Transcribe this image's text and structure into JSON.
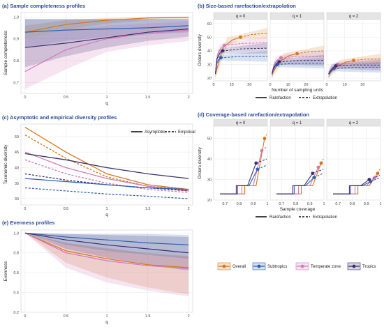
{
  "colors": {
    "overall": "#d3761c",
    "subtropics": "#2f5fb0",
    "temperate": "#d07ab8",
    "tropics": "#3b2e6e",
    "accent": "#2a4a9a"
  },
  "legend_bottom": {
    "items": [
      {
        "key": "overall",
        "label": "Overall"
      },
      {
        "key": "subtropics",
        "label": "Subtropics"
      },
      {
        "key": "temperate",
        "label": "Temperate zone"
      },
      {
        "key": "tropics",
        "label": "Tropics"
      }
    ]
  },
  "chart_data": [
    {
      "panel": "a",
      "type": "line",
      "title": "(a) Sample completeness profiles",
      "xlabel": "q",
      "ylabel": "Sample completeness",
      "xlim": [
        0,
        2
      ],
      "ylim": [
        0.65,
        1.02
      ],
      "xticks": [
        0,
        0.5,
        1,
        1.5,
        2
      ],
      "yticks": [
        0.7,
        0.8,
        0.9,
        1.0
      ],
      "x": [
        0,
        0.5,
        1,
        1.5,
        2
      ],
      "series": [
        {
          "key": "overall",
          "values": [
            0.93,
            0.965,
            0.985,
            0.995,
            0.998
          ],
          "lower": [
            0.9,
            0.94,
            0.97,
            0.985,
            0.99
          ],
          "upper": [
            0.96,
            0.985,
            0.995,
            1.0,
            1.0
          ]
        },
        {
          "key": "subtropics",
          "values": [
            0.93,
            0.94,
            0.945,
            0.95,
            0.96
          ],
          "lower": [
            0.86,
            0.89,
            0.91,
            0.92,
            0.93
          ],
          "upper": [
            0.99,
            0.99,
            0.99,
            0.99,
            0.99
          ]
        },
        {
          "key": "temperate",
          "values": [
            0.75,
            0.85,
            0.9,
            0.925,
            0.94
          ],
          "lower": [
            0.67,
            0.76,
            0.84,
            0.87,
            0.89
          ],
          "upper": [
            0.9,
            0.94,
            0.96,
            0.97,
            0.98
          ]
        },
        {
          "key": "tropics",
          "values": [
            0.86,
            0.88,
            0.905,
            0.93,
            0.945
          ],
          "lower": [
            0.77,
            0.82,
            0.86,
            0.89,
            0.91
          ],
          "upper": [
            0.99,
            0.99,
            0.99,
            0.99,
            0.99
          ]
        }
      ]
    },
    {
      "panel": "b",
      "type": "line",
      "title": "(b) Size-based rarefaction/extrapolation",
      "xlabel": "Number of sampling units",
      "ylabel": "Orders diversity",
      "facets": [
        "q = 0",
        "q = 1",
        "q = 2"
      ],
      "xlim": [
        0,
        30
      ],
      "ylim": [
        18,
        63
      ],
      "xticks": [
        0,
        10,
        20
      ],
      "yticks": [
        20,
        30,
        40,
        50,
        60
      ],
      "legend": {
        "solid": "Rarefaction",
        "dashed": "Extrapolation"
      },
      "series": [
        {
          "key": "overall",
          "ref_x": 15,
          "ref": [
            50,
            38,
            33
          ],
          "end": [
            53,
            40,
            34
          ]
        },
        {
          "key": "subtropics",
          "ref_x": 4,
          "ref": [
            35,
            30,
            27
          ],
          "end": [
            36,
            31,
            28
          ]
        },
        {
          "key": "temperate",
          "ref_x": 6,
          "ref": [
            44,
            35,
            30
          ],
          "end": [
            46,
            36,
            31
          ]
        },
        {
          "key": "tropics",
          "ref_x": 5,
          "ref": [
            40,
            32,
            29
          ],
          "end": [
            42,
            33,
            29.5
          ]
        }
      ]
    },
    {
      "panel": "c",
      "type": "line",
      "title": "(c) Asymptotic and empirical diversity profiles",
      "xlabel": "q",
      "ylabel": "Taxonomic diversity",
      "xlim": [
        0,
        2
      ],
      "ylim": [
        28,
        54
      ],
      "xticks": [
        0,
        0.5,
        1,
        1.5,
        2
      ],
      "yticks": [
        30,
        35,
        40,
        45,
        50
      ],
      "legend": {
        "solid": "Asymptotic",
        "dashed": "Empirical"
      },
      "x": [
        0,
        0.5,
        1,
        1.5,
        2
      ],
      "series": [
        {
          "key": "overall",
          "asymptotic": [
            53,
            45,
            38,
            34.5,
            33
          ],
          "empirical": [
            50.5,
            43,
            37,
            34,
            33
          ]
        },
        {
          "key": "temperate",
          "asymptotic": [
            45,
            40,
            36.5,
            34,
            32.5
          ],
          "empirical": [
            42.5,
            38,
            35,
            33,
            32
          ]
        },
        {
          "key": "tropics",
          "asymptotic": [
            44.5,
            42.5,
            40,
            38,
            36.5
          ],
          "empirical": [
            38,
            36,
            34.5,
            33.5,
            32.5
          ]
        },
        {
          "key": "subtropics",
          "asymptotic": [
            36.5,
            35.5,
            34.5,
            33.5,
            33
          ],
          "empirical": [
            33.5,
            32.5,
            31.5,
            30.8,
            30
          ]
        }
      ]
    },
    {
      "panel": "d",
      "type": "line",
      "title": "(d) Coverage-based rarefaction/extrapolation",
      "xlabel": "Sample coverage",
      "ylabel": "Orders diversity",
      "facets": [
        "q = 0",
        "q = 1",
        "q = 2"
      ],
      "xlim": [
        0.62,
        1.0
      ],
      "ylim": [
        20,
        56
      ],
      "xticks": [
        0.7,
        0.8,
        0.9,
        1.0
      ],
      "yticks": [
        20,
        30,
        40,
        50
      ],
      "legend": {
        "solid": "Rarefaction",
        "dashed": "Extrapolation"
      },
      "series": [
        {
          "key": "overall",
          "ref_cov": 0.98,
          "ref": [
            50,
            38,
            33
          ]
        },
        {
          "key": "temperate",
          "ref_cov": 0.96,
          "ref": [
            44,
            36,
            31
          ]
        },
        {
          "key": "subtropics",
          "ref_cov": 0.93,
          "ref": [
            35,
            31,
            29
          ]
        },
        {
          "key": "tropics",
          "ref_cov": 0.92,
          "ref": [
            38,
            33,
            30
          ]
        }
      ]
    },
    {
      "panel": "e",
      "type": "line",
      "title": "(e) Evenness profiles",
      "xlabel": "q",
      "ylabel": "Evenness",
      "xlim": [
        0,
        2
      ],
      "ylim": [
        0.2,
        1.03
      ],
      "xticks": [
        0,
        0.5,
        1,
        1.5,
        2
      ],
      "yticks": [
        0.2,
        0.4,
        0.6,
        0.8,
        1.0
      ],
      "x": [
        0,
        0.5,
        1,
        1.5,
        2
      ],
      "series": [
        {
          "key": "overall",
          "values": [
            1.0,
            0.82,
            0.74,
            0.68,
            0.65
          ],
          "lower": [
            1.0,
            0.7,
            0.55,
            0.45,
            0.38
          ],
          "upper": [
            1.0,
            0.9,
            0.85,
            0.8,
            0.77
          ]
        },
        {
          "key": "temperate",
          "values": [
            1.0,
            0.8,
            0.72,
            0.67,
            0.64
          ],
          "lower": [
            1.0,
            0.65,
            0.5,
            0.42,
            0.36
          ],
          "upper": [
            1.0,
            0.9,
            0.84,
            0.79,
            0.76
          ]
        },
        {
          "key": "subtropics",
          "values": [
            1.0,
            0.96,
            0.93,
            0.9,
            0.88
          ],
          "lower": [
            1.0,
            0.88,
            0.82,
            0.78,
            0.74
          ],
          "upper": [
            1.0,
            0.99,
            0.99,
            0.99,
            0.98
          ]
        },
        {
          "key": "tropics",
          "values": [
            1.0,
            0.93,
            0.88,
            0.84,
            0.8
          ],
          "lower": [
            1.0,
            0.84,
            0.75,
            0.68,
            0.62
          ],
          "upper": [
            1.0,
            0.99,
            0.98,
            0.97,
            0.96
          ]
        }
      ]
    }
  ]
}
